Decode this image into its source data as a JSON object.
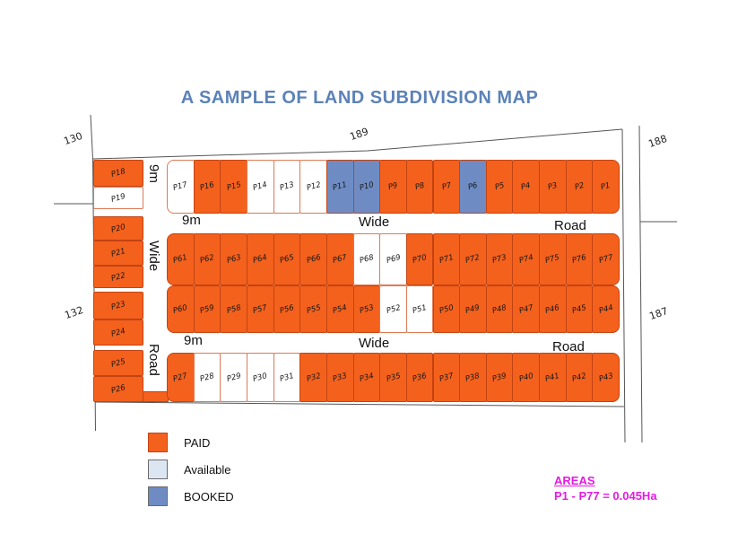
{
  "title": "A SAMPLE OF LAND SUBDIVISION MAP",
  "colors": {
    "paid": "#F4611D",
    "available": "#FFFFFF",
    "booked": "#6E8CC3",
    "paid_border": "#C34312",
    "available_border": "#DD7A55",
    "available_swatch": "#DCE6F2",
    "title_text": "#5B82B8",
    "areas_text": "#E31BE3",
    "boundary_line": "#555555"
  },
  "survey_labels": {
    "nw": "130",
    "n": "189",
    "ne": "188",
    "e": "187",
    "w": "132"
  },
  "roads": {
    "horizontal_upper": [
      "9m",
      "Wide",
      "Road"
    ],
    "horizontal_lower": [
      "9m",
      "Wide",
      "Road"
    ],
    "vertical": [
      "9m",
      "Wide",
      "Road"
    ]
  },
  "legend": {
    "items": [
      {
        "label": "PAID",
        "status": "paid"
      },
      {
        "label": "Available",
        "status": "available"
      },
      {
        "label": "BOOKED",
        "status": "booked"
      }
    ]
  },
  "areas": {
    "heading": "AREAS",
    "value": "P1 - P77 = 0.045Ha"
  },
  "map": {
    "rows": [
      {
        "key": "top",
        "plots": [
          {
            "id": "P17",
            "status": "available"
          },
          {
            "id": "P16",
            "status": "paid"
          },
          {
            "id": "P15",
            "status": "paid"
          },
          {
            "id": "P14",
            "status": "available"
          },
          {
            "id": "P13",
            "status": "available"
          },
          {
            "id": "P12",
            "status": "available"
          },
          {
            "id": "P11",
            "status": "booked"
          },
          {
            "id": "P10",
            "status": "booked"
          },
          {
            "id": "P9",
            "status": "paid"
          },
          {
            "id": "P8",
            "status": "paid"
          },
          {
            "id": "P7",
            "status": "paid"
          },
          {
            "id": "P6",
            "status": "booked"
          },
          {
            "id": "P5",
            "status": "paid"
          },
          {
            "id": "P4",
            "status": "paid"
          },
          {
            "id": "P3",
            "status": "paid"
          },
          {
            "id": "P2",
            "status": "paid"
          },
          {
            "id": "P1",
            "status": "paid"
          }
        ]
      },
      {
        "key": "middle-upper",
        "plots": [
          {
            "id": "P61",
            "status": "paid"
          },
          {
            "id": "P62",
            "status": "paid"
          },
          {
            "id": "P63",
            "status": "paid"
          },
          {
            "id": "P64",
            "status": "paid"
          },
          {
            "id": "P65",
            "status": "paid"
          },
          {
            "id": "P66",
            "status": "paid"
          },
          {
            "id": "P67",
            "status": "paid"
          },
          {
            "id": "P68",
            "status": "available"
          },
          {
            "id": "P69",
            "status": "available"
          },
          {
            "id": "P70",
            "status": "paid"
          },
          {
            "id": "P71",
            "status": "paid"
          },
          {
            "id": "P72",
            "status": "paid"
          },
          {
            "id": "P73",
            "status": "paid"
          },
          {
            "id": "P74",
            "status": "paid"
          },
          {
            "id": "P75",
            "status": "paid"
          },
          {
            "id": "P76",
            "status": "paid"
          },
          {
            "id": "P77",
            "status": "paid"
          }
        ]
      },
      {
        "key": "middle-lower",
        "plots": [
          {
            "id": "P60",
            "status": "paid"
          },
          {
            "id": "P59",
            "status": "paid"
          },
          {
            "id": "P58",
            "status": "paid"
          },
          {
            "id": "P57",
            "status": "paid"
          },
          {
            "id": "P56",
            "status": "paid"
          },
          {
            "id": "P55",
            "status": "paid"
          },
          {
            "id": "P54",
            "status": "paid"
          },
          {
            "id": "P53",
            "status": "paid"
          },
          {
            "id": "P52",
            "status": "available"
          },
          {
            "id": "P51",
            "status": "available"
          },
          {
            "id": "P50",
            "status": "paid"
          },
          {
            "id": "P49",
            "status": "paid"
          },
          {
            "id": "P48",
            "status": "paid"
          },
          {
            "id": "P47",
            "status": "paid"
          },
          {
            "id": "P46",
            "status": "paid"
          },
          {
            "id": "P45",
            "status": "paid"
          },
          {
            "id": "P44",
            "status": "paid"
          }
        ]
      },
      {
        "key": "bottom",
        "plots": [
          {
            "id": "P27",
            "status": "paid"
          },
          {
            "id": "P28",
            "status": "available"
          },
          {
            "id": "P29",
            "status": "available"
          },
          {
            "id": "P30",
            "status": "available"
          },
          {
            "id": "P31",
            "status": "available"
          },
          {
            "id": "P32",
            "status": "paid"
          },
          {
            "id": "P33",
            "status": "paid"
          },
          {
            "id": "P34",
            "status": "paid"
          },
          {
            "id": "P35",
            "status": "paid"
          },
          {
            "id": "P36",
            "status": "paid"
          },
          {
            "id": "P37",
            "status": "paid"
          },
          {
            "id": "P38",
            "status": "paid"
          },
          {
            "id": "P39",
            "status": "paid"
          },
          {
            "id": "P40",
            "status": "paid"
          },
          {
            "id": "P41",
            "status": "paid"
          },
          {
            "id": "P42",
            "status": "paid"
          },
          {
            "id": "P43",
            "status": "paid"
          }
        ]
      },
      {
        "key": "left-column",
        "plots": [
          {
            "id": "P18",
            "status": "paid"
          },
          {
            "id": "P19",
            "status": "available"
          },
          {
            "id": "P20",
            "status": "paid"
          },
          {
            "id": "P21",
            "status": "paid"
          },
          {
            "id": "P22",
            "status": "paid"
          },
          {
            "id": "P23",
            "status": "paid"
          },
          {
            "id": "P24",
            "status": "paid"
          },
          {
            "id": "P25",
            "status": "paid"
          },
          {
            "id": "P26",
            "status": "paid"
          }
        ]
      }
    ]
  }
}
